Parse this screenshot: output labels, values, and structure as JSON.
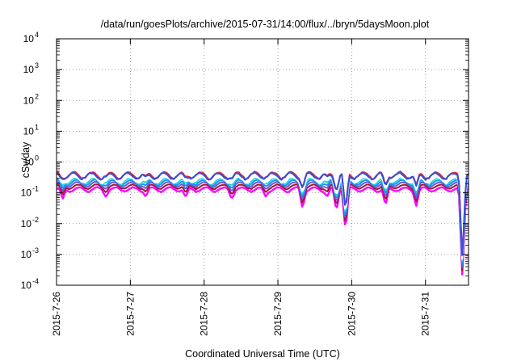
{
  "chart_data": {
    "type": "line",
    "title": "/data/run/goesPlots/archive/2015-07-31/14:00/flux/../bryn/5daysMoon.plot",
    "xlabel": "Coordinated Universal Time (UTC)",
    "ylabel": "cSv/day",
    "yscale": "log",
    "ylim": [
      0.0001,
      10000
    ],
    "y_ticks": [
      {
        "value": 0.0001,
        "base": "10",
        "exp": "-4"
      },
      {
        "value": 0.001,
        "base": "10",
        "exp": "-3"
      },
      {
        "value": 0.01,
        "base": "10",
        "exp": "-2"
      },
      {
        "value": 0.1,
        "base": "10",
        "exp": "-1"
      },
      {
        "value": 1,
        "base": "10",
        "exp": "0"
      },
      {
        "value": 10,
        "base": "10",
        "exp": "1"
      },
      {
        "value": 100,
        "base": "10",
        "exp": "2"
      },
      {
        "value": 1000,
        "base": "10",
        "exp": "3"
      },
      {
        "value": 10000,
        "base": "10",
        "exp": "4"
      }
    ],
    "xlim": [
      "2015-07-26",
      "2015-07-31 14:00"
    ],
    "x_tick_labels": [
      "2015-7-26",
      "2015-7-27",
      "2015-7-28",
      "2015-7-29",
      "2015-7-30",
      "2015-7-31"
    ],
    "grid": true,
    "series": [
      {
        "color": "#ff00ff",
        "level": 0.13,
        "amp": 0.1,
        "drop_scale": 1.6
      },
      {
        "color": "#a01830",
        "level": 0.16,
        "amp": 0.1,
        "drop_scale": 1.4
      },
      {
        "color": "#6a5acd",
        "level": 0.19,
        "amp": 0.11,
        "drop_scale": 1.3
      },
      {
        "color": "#1e90ff",
        "level": 0.22,
        "amp": 0.12,
        "drop_scale": 1.2
      },
      {
        "color": "#20d8d0",
        "level": 0.25,
        "amp": 0.13,
        "drop_scale": 1.1
      },
      {
        "color": "#ffffff",
        "level": 0.27,
        "amp": 0.13,
        "drop_scale": 1.0
      },
      {
        "color": "#e0283c",
        "level": 0.38,
        "amp": 0.15,
        "drop_scale": 1.0
      },
      {
        "color": "#3050e0",
        "level": 0.36,
        "amp": 0.14,
        "drop_scale": 1.0
      }
    ],
    "dips": [
      {
        "time": "2015-07-26 02:00",
        "min": 0.1
      },
      {
        "time": "2015-07-26 16:00",
        "min": 0.12
      },
      {
        "time": "2015-07-27 05:00",
        "min": 0.12
      },
      {
        "time": "2015-07-27 18:00",
        "min": 0.11
      },
      {
        "time": "2015-07-28 09:00",
        "min": 0.1
      },
      {
        "time": "2015-07-28 20:00",
        "min": 0.12
      },
      {
        "time": "2015-07-29 08:00",
        "min": 0.05
      },
      {
        "time": "2015-07-29 16:00",
        "min": 0.12
      },
      {
        "time": "2015-07-29 19:00",
        "min": 0.04
      },
      {
        "time": "2015-07-29 22:00",
        "min": 0.009
      },
      {
        "time": "2015-07-30 11:00",
        "min": 0.06
      },
      {
        "time": "2015-07-30 21:00",
        "min": 0.06
      },
      {
        "time": "2015-07-31 12:00",
        "min": 0.00025
      }
    ]
  }
}
